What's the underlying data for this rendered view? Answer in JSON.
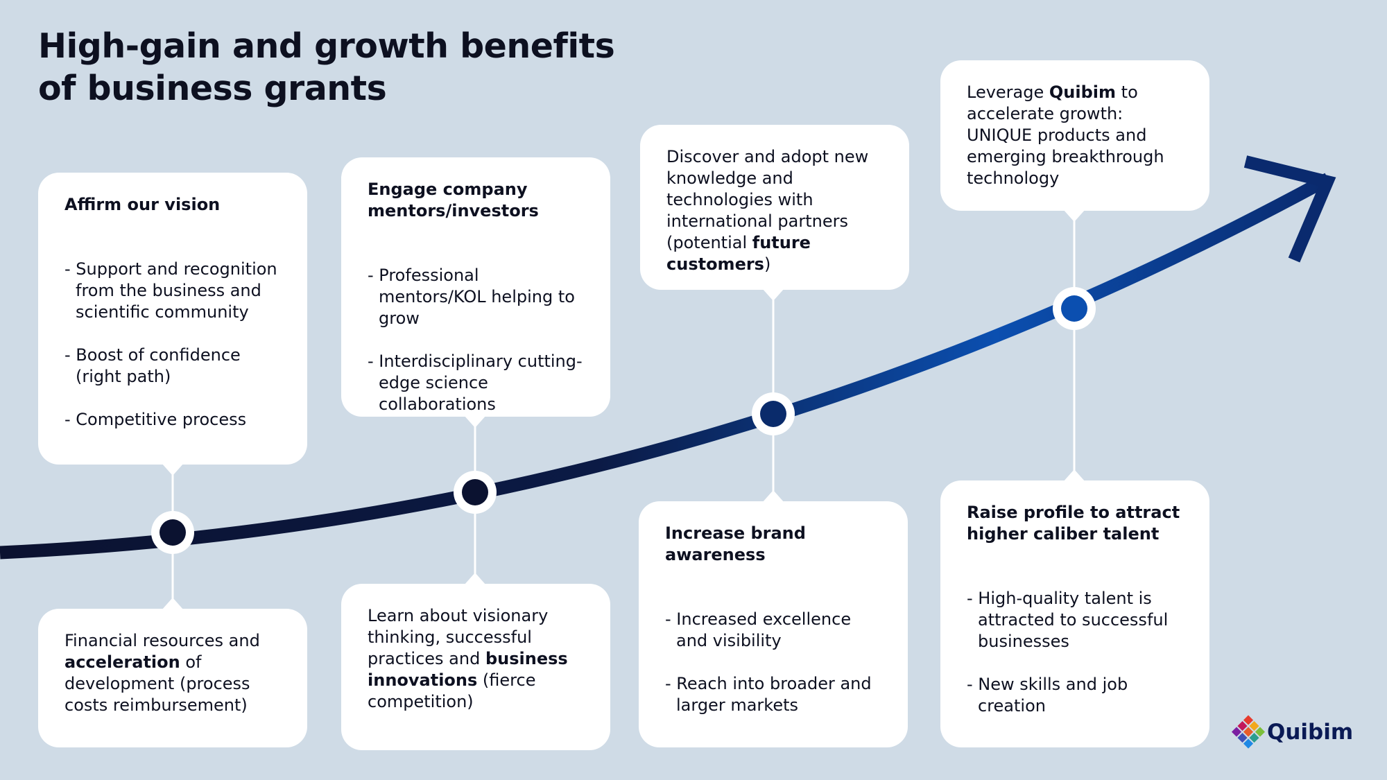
{
  "title": [
    "High-gain and growth benefits",
    "of business grants"
  ],
  "cards": [
    {
      "blocks": [
        [
          {
            "text": "Affirm our vision",
            "bold": true
          }
        ],
        [
          {
            "text": "- Support and recognition from the business and scientific community"
          }
        ],
        [
          {
            "text": "- Boost of confidence (right path)"
          }
        ],
        [
          {
            "text": "- Competitive process"
          }
        ]
      ]
    },
    {
      "blocks": [
        [
          {
            "text": "Financial resources and "
          },
          {
            "text": "acceleration",
            "bold": true
          },
          {
            "text": " of development (process costs reimbursement)"
          }
        ]
      ]
    },
    {
      "blocks": [
        [
          {
            "text": "Engage company mentors/investors",
            "bold": true
          }
        ],
        [
          {
            "text": "- Professional mentors/KOL helping to grow"
          }
        ],
        [
          {
            "text": "- Interdisciplinary cutting-edge science collaborations"
          }
        ]
      ]
    },
    {
      "blocks": [
        [
          {
            "text": "Learn about visionary thinking, successful practices and "
          },
          {
            "text": "business innovations",
            "bold": true
          },
          {
            "text": " (fierce competition)"
          }
        ]
      ]
    },
    {
      "blocks": [
        [
          {
            "text": "Discover and adopt new knowledge and technologies with international partners (potential "
          },
          {
            "text": "future customers",
            "bold": true
          },
          {
            "text": ")"
          }
        ]
      ]
    },
    {
      "blocks": [
        [
          {
            "text": "Increase brand awareness",
            "bold": true
          }
        ],
        [
          {
            "text": "- Increased excellence and visibility"
          }
        ],
        [
          {
            "text": "- Reach into broader and larger markets"
          }
        ]
      ]
    },
    {
      "blocks": [
        [
          {
            "text": "Leverage "
          },
          {
            "text": "Quibim",
            "bold": true
          },
          {
            "text": " to accelerate growth: UNIQUE products and emerging breakthrough technology"
          }
        ]
      ]
    },
    {
      "blocks": [
        [
          {
            "text": "Raise profile to attract higher caliber talent",
            "bold": true
          }
        ],
        [
          {
            "text": "- High-quality talent is attracted to successful businesses"
          }
        ],
        [
          {
            "text": "- New skills and job creation"
          }
        ]
      ]
    }
  ],
  "logo": "Quibim"
}
